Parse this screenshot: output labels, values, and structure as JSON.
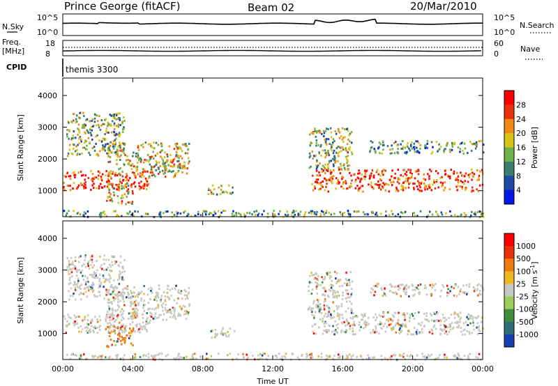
{
  "header": {
    "station": "Prince George (fitACF)",
    "beam": "Beam 02",
    "date": "20/Mar/2010"
  },
  "top_panels": {
    "nsky_label": "N.Sky",
    "nsearch_label": "N.Search",
    "nsky_ticks": [
      "10^5",
      "10^0"
    ],
    "nsearch_ticks": [
      "10^5",
      "10^0"
    ],
    "freq_label": "Freq.",
    "freq_unit": "[MHz]",
    "freq_ticks": [
      "18",
      "8"
    ],
    "nave_label": "Nave",
    "nave_ticks": [
      "60",
      "0"
    ],
    "cpid_label": "CPID",
    "cpid_value": "themis 3300"
  },
  "chart_data": [
    {
      "type": "heatmap",
      "name": "power",
      "ylabel": "Slant Range [km]",
      "ylim": [
        180,
        4550
      ],
      "y_ticks": [
        "1000",
        "2000",
        "3000",
        "4000"
      ],
      "y_tick_values": [
        1000,
        2000,
        3000,
        4000
      ],
      "colorbar_label": "Power [dB]",
      "colorbar_ticks": [
        "4",
        "8",
        "12",
        "16",
        "20",
        "24",
        "28"
      ],
      "colorbar_colors": [
        "#0018e8",
        "#1e4aa8",
        "#3a7f6e",
        "#6fb24a",
        "#d8c21a",
        "#f08a14",
        "#e83010",
        "#ff0000"
      ],
      "regions": [
        {
          "t0": 0.0,
          "t1": 5.0,
          "r0": 1050,
          "r1": 1650,
          "intensity": 0.85
        },
        {
          "t0": 2.5,
          "t1": 7.2,
          "r0": 1450,
          "r1": 2550,
          "intensity": 0.55
        },
        {
          "t0": 0.2,
          "t1": 3.5,
          "r0": 2100,
          "r1": 3500,
          "intensity": 0.45
        },
        {
          "t0": 2.4,
          "t1": 4.0,
          "r0": 600,
          "r1": 1250,
          "intensity": 0.6
        },
        {
          "t0": 14.2,
          "t1": 24.0,
          "r0": 1000,
          "r1": 1700,
          "intensity": 0.8
        },
        {
          "t0": 14.0,
          "t1": 16.5,
          "r0": 1700,
          "r1": 3000,
          "intensity": 0.45
        },
        {
          "t0": 17.5,
          "t1": 24.0,
          "r0": 2200,
          "r1": 2600,
          "intensity": 0.35
        },
        {
          "t0": 8.2,
          "t1": 9.8,
          "r0": 900,
          "r1": 1200,
          "intensity": 0.4
        },
        {
          "t0": 0.0,
          "t1": 24.0,
          "r0": 200,
          "r1": 400,
          "intensity": 0.35
        }
      ]
    },
    {
      "type": "heatmap",
      "name": "velocity",
      "ylabel": "Slant Range [km]",
      "ylim": [
        180,
        4550
      ],
      "y_ticks": [
        "1000",
        "2000",
        "3000",
        "4000"
      ],
      "y_tick_values": [
        1000,
        2000,
        3000,
        4000
      ],
      "colorbar_label": "Velocity [m s^-1]",
      "colorbar_ticks": [
        "1000",
        "500",
        "100",
        "25",
        "-25",
        "-100",
        "-500",
        "-1000"
      ],
      "colorbar_colors": [
        "#1a3fb0",
        "#2f6f7a",
        "#3f8f3a",
        "#9ccc5a",
        "#c8c8c0",
        "#f0b820",
        "#f07a10",
        "#e83010",
        "#ff0000"
      ],
      "regions": [
        {
          "t0": 0.0,
          "t1": 5.0,
          "r0": 1050,
          "r1": 1650,
          "intensity": 0.5
        },
        {
          "t0": 2.5,
          "t1": 7.2,
          "r0": 1450,
          "r1": 2550,
          "intensity": 0.5
        },
        {
          "t0": 0.2,
          "t1": 3.5,
          "r0": 2100,
          "r1": 3500,
          "intensity": 0.5
        },
        {
          "t0": 2.4,
          "t1": 4.0,
          "r0": 600,
          "r1": 1250,
          "intensity": 0.85
        },
        {
          "t0": 14.2,
          "t1": 24.0,
          "r0": 1000,
          "r1": 1700,
          "intensity": 0.5
        },
        {
          "t0": 14.0,
          "t1": 16.5,
          "r0": 1700,
          "r1": 3000,
          "intensity": 0.3
        },
        {
          "t0": 17.5,
          "t1": 24.0,
          "r0": 2200,
          "r1": 2600,
          "intensity": 0.5
        },
        {
          "t0": 8.2,
          "t1": 9.8,
          "r0": 900,
          "r1": 1200,
          "intensity": 0.5
        },
        {
          "t0": 0.0,
          "t1": 24.0,
          "r0": 200,
          "r1": 400,
          "intensity": 0.6
        }
      ]
    }
  ],
  "time_axis": {
    "xlabel": "Time UT",
    "ticks": [
      "00:00",
      "04:00",
      "08:00",
      "12:00",
      "16:00",
      "20:00",
      "00:00"
    ],
    "tick_hours": [
      0,
      4,
      8,
      12,
      16,
      20,
      24
    ],
    "xlim": [
      0,
      24
    ]
  }
}
